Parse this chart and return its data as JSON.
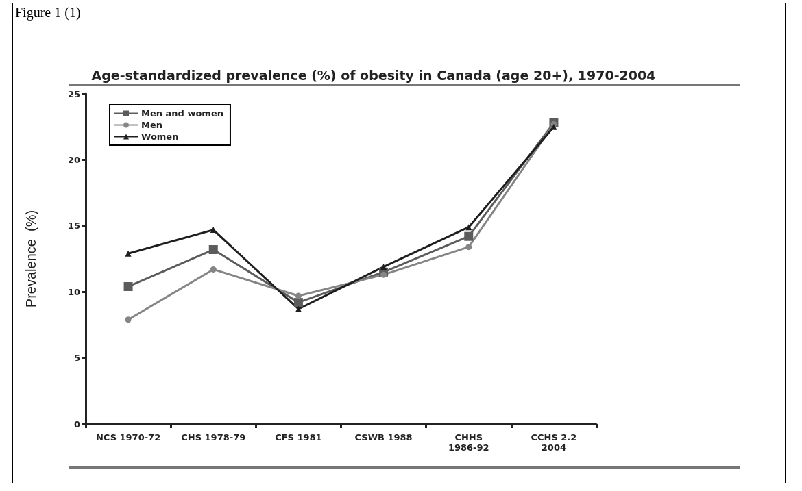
{
  "chart_data": {
    "type": "line",
    "title": "Age-standardized prevalence (%) of obesity in Canada (age 20+), 1970-2004",
    "ylabel": "Prevalence  (%)",
    "annotations": [
      "Figure 1 (1)"
    ],
    "categories": [
      "NCS 1970-72",
      "CHS 1978-79",
      "CFS 1981",
      "CSWB 1988",
      "CHHS\n1986-92",
      "CCHS 2.2\n2004"
    ],
    "series": [
      {
        "name": "Men and women",
        "color": "#5c5c5c",
        "marker": "square",
        "values": [
          10.4,
          13.2,
          9.2,
          11.5,
          14.2,
          22.8
        ]
      },
      {
        "name": "Men",
        "color": "#858585",
        "marker": "circle",
        "values": [
          7.9,
          11.7,
          9.7,
          11.3,
          13.4,
          22.7
        ]
      },
      {
        "name": "Women",
        "color": "#1e1e1e",
        "marker": "triangle",
        "values": [
          12.9,
          14.7,
          8.7,
          11.9,
          14.9,
          22.5
        ]
      }
    ],
    "ylim": [
      0,
      25
    ],
    "yticks": [
      0,
      5,
      10,
      15,
      20,
      25
    ],
    "grid": false,
    "legend": "top left",
    "line_style": "solid"
  }
}
